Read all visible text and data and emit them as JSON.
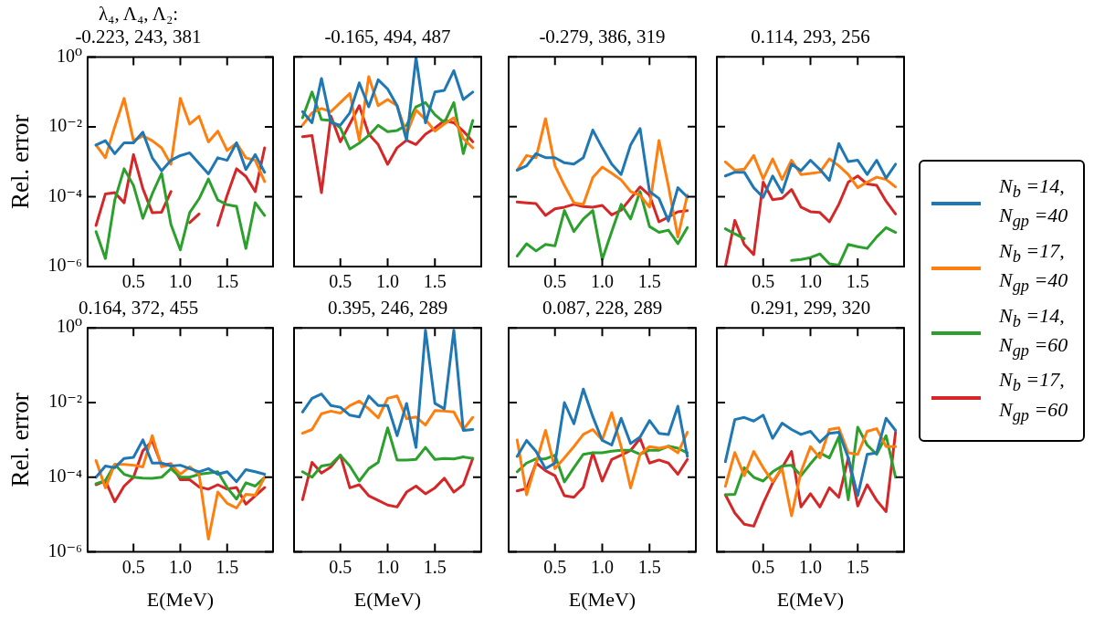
{
  "chart_data": [
    {
      "type": "line",
      "title": "λ₄, Λ₄, Λ₂:\n-0.223, 243, 381",
      "ylabel": "Rel. error",
      "x": [
        0.1,
        0.2,
        0.3,
        0.4,
        0.5,
        0.6,
        0.7,
        0.8,
        0.9,
        1.0,
        1.1,
        1.2,
        1.3,
        1.4,
        1.5,
        1.6,
        1.7,
        1.8,
        1.9
      ],
      "xlim": [
        0.01,
        1.99
      ],
      "xticks": [
        {
          "value": 0.5,
          "label": "0.5"
        },
        {
          "value": 1,
          "label": "1.0"
        },
        {
          "value": 1.5,
          "label": "1.5"
        }
      ],
      "ylim": [
        1e-06,
        1
      ],
      "yticks": [
        {
          "value": 1e-06,
          "label": "10⁻⁶"
        },
        {
          "value": 0.0001,
          "label": "10⁻⁴"
        },
        {
          "value": 0.01,
          "label": "10⁻²"
        },
        {
          "value": 1,
          "label": "10⁰"
        }
      ],
      "log": true,
      "legend": "right",
      "series": [
        {
          "name": "N$_{b}$ =14, N$_{gp}$ =40",
          "color": "#1f77b4",
          "values": [
            0.003,
            0.004,
            0.0017,
            0.0035,
            0.0035,
            0.007,
            0.0013,
            0.00055,
            0.0011,
            0.0015,
            0.0018,
            0.0009,
            0.00045,
            0.0013,
            0.0011,
            0.0035,
            0.0006,
            0.0016,
            0.0005
          ]
        },
        {
          "name": "N$_{b}$ =17, N$_{gp}$ =40",
          "color": "#ff7f0e",
          "values": [
            0.003,
            0.0013,
            0.01,
            0.065,
            0.004,
            0.0055,
            0.004,
            0.0025,
            0.00085,
            0.065,
            0.012,
            0.02,
            0.0037,
            0.0075,
            0.0021,
            0.0034,
            0.0013,
            0.0011,
            0.00027
          ]
        },
        {
          "name": "N$_{b}$ =14, N$_{gp}$ =60",
          "color": "#2ca02c",
          "values": [
            1e-05,
            1.7e-06,
            8e-05,
            0.00063,
            0.00021,
            2.4e-05,
            0.00012,
            0.00047,
            1.6e-05,
            3e-06,
            3.5e-05,
            8.7e-05,
            0.00032,
            8e-05,
            5.9e-05,
            5.3e-05,
            3.3e-06,
            6.7e-05,
            2.9e-05
          ]
        },
        {
          "name": "N$_{b}$ =17, N$_{gp}$ =60",
          "color": "#d62728",
          "values": [
            1.5e-05,
            0.00012,
            0.00013,
            6.7e-05,
            0.0016,
            0.00017,
            3.5e-05,
            3.6e-05,
            0.00014,
            null,
            1.8e-05,
            3.2e-05,
            null,
            1.5e-05,
            0.00011,
            0.00063,
            0.00038,
            0.00014,
            0.0025
          ]
        }
      ]
    },
    {
      "type": "line",
      "title": "-0.165, 494, 487",
      "x": [
        0.1,
        0.2,
        0.3,
        0.4,
        0.5,
        0.6,
        0.7,
        0.8,
        0.9,
        1.0,
        1.1,
        1.2,
        1.3,
        1.4,
        1.5,
        1.6,
        1.7,
        1.8,
        1.9
      ],
      "xlim": [
        0.01,
        1.99
      ],
      "xticks": [
        {
          "value": 0.5,
          "label": "0.5"
        },
        {
          "value": 1,
          "label": "1.0"
        },
        {
          "value": 1.5,
          "label": "1.5"
        }
      ],
      "ylim": [
        1e-06,
        1
      ],
      "yticks": [
        {
          "value": 1e-06,
          "label": null
        },
        {
          "value": 0.0001,
          "label": null
        },
        {
          "value": 0.01,
          "label": null
        },
        {
          "value": 1,
          "label": null
        }
      ],
      "log": true,
      "tick_labels": "x",
      "series": [
        {
          "color": "#1f77b4",
          "values": [
            0.027,
            0.013,
            0.24,
            0.013,
            0.011,
            0.025,
            0.18,
            0.037,
            0.22,
            0.12,
            0.04,
            0.0041,
            0.95,
            0.013,
            0.098,
            0.11,
            0.4,
            0.06,
            0.098
          ]
        },
        {
          "color": "#ff7f0e",
          "values": [
            0.011,
            0.025,
            0.033,
            0.027,
            0.049,
            0.089,
            0.0041,
            0.27,
            0.04,
            0.06,
            0.04,
            0.0061,
            0.03,
            0.016,
            0.0075,
            0.012,
            0.018,
            0.0046,
            0.0025
          ]
        },
        {
          "color": "#2ca02c",
          "values": [
            0.018,
            0.098,
            0.016,
            0.015,
            0.0092,
            0.0023,
            0.0034,
            0.0056,
            0.011,
            0.0072,
            0.0078,
            0.011,
            0.037,
            0.049,
            0.022,
            0.013,
            0.049,
            0.0017,
            0.015
          ]
        },
        {
          "color": "#d62728",
          "values": [
            0.0052,
            0.0056,
            0.00013,
            0.02,
            0.0037,
            0.012,
            0.04,
            0.0061,
            0.0031,
            0.00084,
            0.0025,
            0.0041,
            0.0031,
            0.0061,
            0.0092,
            0.015,
            0.013,
            0.0075,
            0.0037
          ]
        }
      ]
    },
    {
      "type": "line",
      "title": "-0.279, 386, 319",
      "x": [
        0.1,
        0.2,
        0.3,
        0.4,
        0.5,
        0.6,
        0.7,
        0.8,
        0.9,
        1.0,
        1.1,
        1.2,
        1.3,
        1.4,
        1.5,
        1.6,
        1.7,
        1.8,
        1.9
      ],
      "xlim": [
        0.01,
        1.99
      ],
      "xticks": [
        {
          "value": 0.5,
          "label": "0.5"
        },
        {
          "value": 1,
          "label": "1.0"
        },
        {
          "value": 1.5,
          "label": "1.5"
        }
      ],
      "ylim": [
        1e-06,
        1
      ],
      "yticks": [
        {
          "value": 1e-06,
          "label": null
        },
        {
          "value": 0.0001,
          "label": null
        },
        {
          "value": 0.01,
          "label": null
        },
        {
          "value": 1,
          "label": null
        }
      ],
      "log": true,
      "tick_labels": "x",
      "series": [
        {
          "color": "#1f77b4",
          "values": [
            0.00057,
            0.00076,
            0.0017,
            0.0013,
            0.0013,
            0.00093,
            0.00085,
            0.0013,
            0.008,
            0.0025,
            0.00085,
            0.00043,
            0.003,
            0.0089,
            0.00014,
            8.9e-05,
            2e-05,
            0.00018,
            9.8e-05
          ]
        },
        {
          "color": "#ff7f0e",
          "values": [
            0.00057,
            0.0015,
            0.0013,
            0.017,
            0.00076,
            0.00021,
            6.6e-05,
            6e-05,
            0.00035,
            0.0007,
            0.00047,
            0.0003,
            0.00014,
            0.00011,
            5e-05,
            0.004,
            0.0002,
            7e-06,
            0.00011
          ]
        },
        {
          "color": "#2ca02c",
          "values": [
            2e-06,
            4.5e-06,
            2.8e-06,
            4.3e-06,
            3.9e-06,
            4e-05,
            1e-05,
            2.3e-05,
            4e-05,
            1.6e-06,
            1e-05,
            6e-05,
            2.3e-05,
            0.00014,
            1.4e-05,
            9.5e-06,
            1.1e-05,
            4.5e-06,
            1.3e-05
          ]
        },
        {
          "color": "#d62728",
          "values": [
            7e-05,
            6.6e-05,
            6.3e-05,
            2.9e-05,
            4.5e-05,
            5e-05,
            6e-05,
            5.2e-05,
            5e-05,
            5.6e-05,
            3e-05,
            4.1e-05,
            8.9e-05,
            0.00019,
            0.00011,
            1.9e-05,
            2.6e-05,
            3.7e-05,
            4e-05
          ]
        }
      ]
    },
    {
      "type": "line",
      "title": "0.114, 293, 256",
      "x": [
        0.1,
        0.2,
        0.3,
        0.4,
        0.5,
        0.6,
        0.7,
        0.8,
        0.9,
        1.0,
        1.1,
        1.2,
        1.3,
        1.4,
        1.5,
        1.6,
        1.7,
        1.8,
        1.9
      ],
      "xlim": [
        0.01,
        1.99
      ],
      "xticks": [
        {
          "value": 0.5,
          "label": "0.5"
        },
        {
          "value": 1,
          "label": "1.0"
        },
        {
          "value": 1.5,
          "label": "1.5"
        }
      ],
      "ylim": [
        1e-06,
        1
      ],
      "yticks": [
        {
          "value": 1e-06,
          "label": null
        },
        {
          "value": 0.0001,
          "label": null
        },
        {
          "value": 0.01,
          "label": null
        },
        {
          "value": 1,
          "label": null
        }
      ],
      "log": true,
      "tick_labels": "x",
      "series": [
        {
          "color": "#1f77b4",
          "values": [
            0.00039,
            0.0005,
            0.0005,
            0.00018,
            9.5e-05,
            0.00039,
            0.00013,
            0.00085,
            0.00055,
            0.0011,
            0.0006,
            0.00029,
            0.0033,
            0.001,
            0.0011,
            0.00043,
            0.0011,
            0.00034,
            0.00085
          ]
        },
        {
          "color": "#ff7f0e",
          "values": [
            0.00099,
            0.00057,
            0.00061,
            0.0015,
            0.00032,
            0.0012,
            0.00031,
            0.0011,
            0.00043,
            0.00046,
            0.0005,
            0.0012,
            0.00076,
            0.00043,
            0.00018,
            0.00026,
            0.00036,
            0.00031,
            0.00019
          ]
        },
        {
          "color": "#2ca02c",
          "values": [
            1.2e-05,
            8.6e-06,
            6.3e-06,
            null,
            null,
            null,
            null,
            1.5e-06,
            1.6e-06,
            1.8e-06,
            2.3e-06,
            1.2e-06,
            1.1e-06,
            4.3e-06,
            3.7e-06,
            3.3e-06,
            7e-06,
            1.3e-05,
            9.5e-06
          ]
        },
        {
          "color": "#d62728",
          "values": [
            1e-06,
            2.1e-05,
            4.3e-06,
            2.2e-06,
            0.00026,
            8.2e-05,
            8.9e-05,
            0.00016,
            5e-05,
            3.7e-05,
            3.5e-05,
            1.9e-05,
            6e-05,
            0.00026,
            0.00039,
            0.00023,
            0.00021,
            7.4e-05,
            3.2e-05
          ]
        }
      ]
    },
    {
      "type": "line",
      "title": "0.164, 372, 455",
      "ylabel": "Rel. error",
      "xlabel": "E(MeV)",
      "x": [
        0.1,
        0.2,
        0.3,
        0.4,
        0.5,
        0.6,
        0.7,
        0.8,
        0.9,
        1.0,
        1.1,
        1.2,
        1.3,
        1.4,
        1.5,
        1.6,
        1.7,
        1.8,
        1.9
      ],
      "xlim": [
        0.01,
        1.99
      ],
      "xticks": [
        {
          "value": 0.5,
          "label": "0.5"
        },
        {
          "value": 1,
          "label": "1.0"
        },
        {
          "value": 1.5,
          "label": "1.5"
        }
      ],
      "ylim": [
        1e-06,
        1
      ],
      "yticks": [
        {
          "value": 1e-06,
          "label": "10⁻⁶"
        },
        {
          "value": 0.0001,
          "label": "10⁻⁴"
        },
        {
          "value": 0.01,
          "label": "10⁻²"
        },
        {
          "value": 1,
          "label": "10⁰"
        }
      ],
      "log": true,
      "series": [
        {
          "color": "#1f77b4",
          "values": [
            0.0001,
            0.0002,
            0.00018,
            0.00032,
            0.00034,
            0.001,
            0.00024,
            0.00024,
            0.0002,
            0.00021,
            0.00017,
            0.00014,
            0.00017,
            0.00012,
            0.00014,
            7.6e-05,
            0.00016,
            0.00014,
            0.00012
          ]
        },
        {
          "color": "#ff7f0e",
          "values": [
            0.00028,
            5.2e-05,
            0.00022,
            0.00022,
            0.00021,
            0.00019,
            0.0013,
            0.00019,
            0.00022,
            0.00012,
            0.00019,
            0.00012,
            2.2e-06,
            4e-05,
            2e-05,
            1.5e-05,
            3.5e-05,
            3.3e-05,
            0.0001
          ]
        },
        {
          "color": "#2ca02c",
          "values": [
            6.7e-05,
            8.1e-05,
            0.00022,
            0.00012,
            0.0001,
            9.5e-05,
            9.4e-05,
            0.0001,
            0.00017,
            0.0001,
            0.0001,
            0.00012,
            0.00013,
            0.00014,
            5.3e-05,
            2.6e-05,
            7.1e-05,
            5.8e-05,
            0.0001
          ]
        },
        {
          "color": "#d62728",
          "values": [
            6.3e-05,
            8.1e-05,
            2.2e-05,
            5.8e-05,
            0.0001,
            0.00051,
            0.00094,
            0.00021,
            0.00023,
            8.6e-05,
            8.6e-05,
            5.5e-05,
            4.8e-05,
            6.3e-05,
            4.8e-05,
            5.3e-05,
            1.9e-05,
            3.2e-05,
            5.3e-05
          ]
        }
      ]
    },
    {
      "type": "line",
      "title": "0.395, 246, 289",
      "xlabel": "E(MeV)",
      "x": [
        0.1,
        0.2,
        0.3,
        0.4,
        0.5,
        0.6,
        0.7,
        0.8,
        0.9,
        1.0,
        1.1,
        1.2,
        1.3,
        1.4,
        1.5,
        1.6,
        1.7,
        1.8,
        1.9
      ],
      "xlim": [
        0.01,
        1.99
      ],
      "xticks": [
        {
          "value": 0.5,
          "label": "0.5"
        },
        {
          "value": 1,
          "label": "1.0"
        },
        {
          "value": 1.5,
          "label": "1.5"
        }
      ],
      "ylim": [
        1e-06,
        1
      ],
      "yticks": [
        {
          "value": 1e-06,
          "label": null
        },
        {
          "value": 0.0001,
          "label": null
        },
        {
          "value": 0.01,
          "label": null
        },
        {
          "value": 1,
          "label": null
        }
      ],
      "log": true,
      "tick_labels": "x",
      "series": [
        {
          "color": "#1f77b4",
          "values": [
            0.0056,
            0.013,
            0.017,
            0.0083,
            0.0075,
            0.0046,
            0.0041,
            0.015,
            0.0083,
            0.0083,
            0.0013,
            0.0095,
            0.00063,
            0.87,
            0.0095,
            0.0068,
            0.87,
            0.0018,
            0.0019
          ]
        },
        {
          "color": "#ff7f0e",
          "values": [
            0.0015,
            0.0019,
            0.005,
            0.0059,
            0.0052,
            0.0083,
            0.011,
            0.0068,
            0.0039,
            0.013,
            0.015,
            0.0037,
            0.0041,
            0.0025,
            0.0061,
            0.0059,
            0.0056,
            0.0019,
            0.004
          ]
        },
        {
          "color": "#2ca02c",
          "values": [
            0.00014,
            0.0001,
            0.0002,
            0.00022,
            0.00039,
            0.0002,
            7.9e-05,
            0.00017,
            0.00025,
            0.0021,
            0.00029,
            0.00029,
            0.0003,
            0.00063,
            0.0003,
            0.00032,
            0.00031,
            0.00035,
            0.00032
          ]
        },
        {
          "color": "#d62728",
          "values": [
            2.5e-05,
            0.00025,
            0.00013,
            0.00019,
            0.00039,
            5.2e-05,
            6.3e-05,
            3.2e-05,
            2.4e-05,
            1.8e-05,
            1.6e-05,
            4e-05,
            5.8e-05,
            3.6e-05,
            5.2e-05,
            9.4e-05,
            4e-05,
            6.3e-05,
            0.00032
          ]
        }
      ]
    },
    {
      "type": "line",
      "title": "0.087, 228, 289",
      "xlabel": "E(MeV)",
      "x": [
        0.1,
        0.2,
        0.3,
        0.4,
        0.5,
        0.6,
        0.7,
        0.8,
        0.9,
        1.0,
        1.1,
        1.2,
        1.3,
        1.4,
        1.5,
        1.6,
        1.7,
        1.8,
        1.9
      ],
      "xlim": [
        0.01,
        1.99
      ],
      "xticks": [
        {
          "value": 0.5,
          "label": "0.5"
        },
        {
          "value": 1,
          "label": "1.0"
        },
        {
          "value": 1.5,
          "label": "1.5"
        }
      ],
      "ylim": [
        1e-06,
        1
      ],
      "yticks": [
        {
          "value": 1e-06,
          "label": null
        },
        {
          "value": 0.0001,
          "label": null
        },
        {
          "value": 0.01,
          "label": null
        },
        {
          "value": 1,
          "label": null
        }
      ],
      "log": true,
      "tick_labels": "x",
      "series": [
        {
          "color": "#1f77b4",
          "values": [
            0.00036,
            0.00097,
            0.00049,
            0.00017,
            0.00024,
            0.01,
            0.0027,
            0.023,
            0.0042,
            0.00097,
            0.00073,
            0.0038,
            0.0008,
            0.0012,
            0.0033,
            0.0015,
            0.0014,
            0.008,
            0.00036
          ]
        },
        {
          "color": "#ff7f0e",
          "values": [
            0.001,
            3.4e-05,
            0.00024,
            0.0018,
            0.00017,
            0.00033,
            0.00066,
            0.0014,
            0.0019,
            0.001,
            0.0054,
            0.00066,
            5.2e-05,
            0.00041,
            0.00066,
            0.0006,
            0.00066,
            0.00045,
            0.0016
          ]
        },
        {
          "color": "#2ca02c",
          "values": [
            0.00014,
            0.00024,
            0.00031,
            0.00031,
            0.00039,
            7.5e-05,
            0.00018,
            0.00041,
            0.00045,
            0.00045,
            0.0005,
            0.00053,
            0.00053,
            0.00041,
            0.00053,
            0.00053,
            0.00068,
            0.0006,
            0.00045
          ]
        },
        {
          "color": "#d62728",
          "values": [
            4.3e-05,
            5e-05,
            0.00024,
            0.00015,
            0.00011,
            3.2e-05,
            2.9e-05,
            5.4e-05,
            0.00045,
            7.9e-05,
            0.0003,
            0.00039,
            0.00052,
            0.0011,
            0.00024,
            0.00029,
            0.00024,
            0.00012,
            0.0003
          ]
        }
      ]
    },
    {
      "type": "line",
      "title": "0.291, 299, 320",
      "xlabel": "E(MeV)",
      "x": [
        0.1,
        0.2,
        0.3,
        0.4,
        0.5,
        0.6,
        0.7,
        0.8,
        0.9,
        1.0,
        1.1,
        1.2,
        1.3,
        1.4,
        1.5,
        1.6,
        1.7,
        1.8,
        1.9
      ],
      "xlim": [
        0.01,
        1.99
      ],
      "xticks": [
        {
          "value": 0.5,
          "label": "0.5"
        },
        {
          "value": 1,
          "label": "1.0"
        },
        {
          "value": 1.5,
          "label": "1.5"
        }
      ],
      "ylim": [
        1e-06,
        1
      ],
      "yticks": [
        {
          "value": 1e-06,
          "label": null
        },
        {
          "value": 0.0001,
          "label": null
        },
        {
          "value": 0.01,
          "label": null
        },
        {
          "value": 1,
          "label": null
        }
      ],
      "log": true,
      "tick_labels": "x",
      "series": [
        {
          "color": "#1f77b4",
          "values": [
            0.00026,
            0.0035,
            0.004,
            0.0032,
            0.0046,
            0.0011,
            0.0028,
            0.0019,
            0.0014,
            0.0017,
            0.00087,
            0.0015,
            0.0016,
            0.00033,
            3.2e-05,
            0.00041,
            0.00045,
            0.0038,
            0.0018
          ]
        },
        {
          "color": "#ff7f0e",
          "values": [
            5.7e-05,
            0.00046,
            0.00011,
            0.00049,
            0.00018,
            7.6e-05,
            0.00017,
            9.3e-06,
            0.00014,
            0.00066,
            0.00033,
            0.0019,
            0.0021,
            0.00045,
            0.00041,
            0.0017,
            0.002,
            0.00066,
            0.00066
          ]
        },
        {
          "color": "#2ca02c",
          "values": [
            3.4e-05,
            3.5e-05,
            0.00018,
            0.0001,
            7.9e-05,
            0.00014,
            0.0002,
            0.00021,
            0.00011,
            0.00023,
            0.00045,
            0.00033,
            0.0012,
            2.5e-05,
            0.0022,
            0.00073,
            0.00041,
            0.0013,
            0.0001
          ]
        },
        {
          "color": "#d62728",
          "values": [
            3.4e-05,
            1.1e-05,
            5.5e-06,
            4.9e-06,
            2e-05,
            7e-05,
            0.00018,
            0.00049,
            1.6e-05,
            3.6e-05,
            1.6e-05,
            5.2e-05,
            2.9e-05,
            0.00033,
            1.7e-05,
            6.3e-05,
            2.4e-05,
            1.2e-05,
            0.0016
          ]
        }
      ]
    }
  ]
}
